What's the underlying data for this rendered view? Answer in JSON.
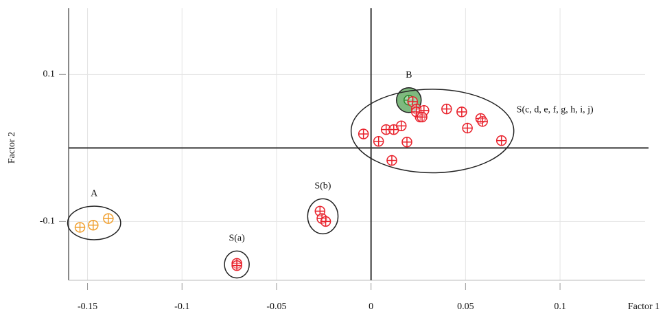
{
  "chart_data": {
    "type": "scatter",
    "x_label": "Factor 1",
    "y_label": "Factor 2",
    "xlim": [
      -0.16,
      0.145
    ],
    "ylim": [
      -0.18,
      0.19
    ],
    "xticks": [
      -0.15,
      -0.1,
      -0.05,
      0,
      0.05,
      0.1
    ],
    "yticks": [
      0.1,
      -0.1
    ],
    "grid": true,
    "series": [
      {
        "name": "A",
        "color": "#f0a030",
        "x": [
          -0.154,
          -0.147,
          -0.139
        ],
        "values": [
          -0.108,
          -0.105,
          -0.096
        ]
      },
      {
        "name": "S(a)",
        "color": "#e8202a",
        "x": [
          -0.071,
          -0.071
        ],
        "values": [
          -0.157,
          -0.16
        ]
      },
      {
        "name": "S(b)",
        "color": "#e8202a",
        "x": [
          -0.027,
          -0.026,
          -0.024
        ],
        "values": [
          -0.086,
          -0.096,
          -0.1
        ]
      },
      {
        "name": "B",
        "color": "#2a8a2a",
        "x": [
          0.02
        ],
        "values": [
          0.065
        ]
      },
      {
        "name": "S(c, d, e, f, g, h, i, j)",
        "color": "#e8202a",
        "x": [
          -0.004,
          0.004,
          0.008,
          0.012,
          0.016,
          0.019,
          0.011,
          0.022,
          0.024,
          0.026,
          0.024,
          0.028,
          0.027,
          0.04,
          0.048,
          0.051,
          0.058,
          0.059,
          0.069
        ],
        "values": [
          0.019,
          0.009,
          0.025,
          0.025,
          0.03,
          0.008,
          -0.017,
          0.063,
          0.053,
          0.042,
          0.049,
          0.051,
          0.042,
          0.053,
          0.049,
          0.027,
          0.04,
          0.036,
          0.01
        ]
      }
    ]
  }
}
